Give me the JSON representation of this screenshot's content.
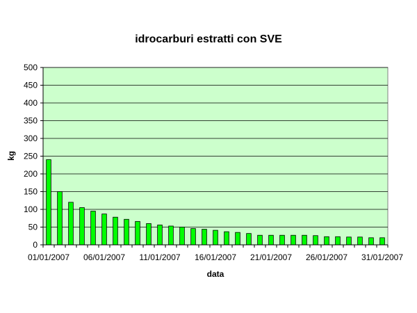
{
  "chart_data": {
    "type": "bar",
    "title": "idrocarburi estratti con SVE",
    "xlabel": "data",
    "ylabel": "kg",
    "ylim": [
      0,
      500
    ],
    "yticks": [
      0,
      50,
      100,
      150,
      200,
      250,
      300,
      350,
      400,
      450,
      500
    ],
    "xtick_labels": [
      "01/01/2007",
      "06/01/2007",
      "11/01/2007",
      "16/01/2007",
      "21/01/2007",
      "26/01/2007",
      "31/01/2007"
    ],
    "categories": [
      "01/01/2007",
      "02/01/2007",
      "03/01/2007",
      "04/01/2007",
      "05/01/2007",
      "06/01/2007",
      "07/01/2007",
      "08/01/2007",
      "09/01/2007",
      "10/01/2007",
      "11/01/2007",
      "12/01/2007",
      "13/01/2007",
      "14/01/2007",
      "15/01/2007",
      "16/01/2007",
      "17/01/2007",
      "18/01/2007",
      "19/01/2007",
      "20/01/2007",
      "21/01/2007",
      "22/01/2007",
      "23/01/2007",
      "24/01/2007",
      "25/01/2007",
      "26/01/2007",
      "27/01/2007",
      "28/01/2007",
      "29/01/2007",
      "30/01/2007",
      "31/01/2007"
    ],
    "values": [
      240,
      150,
      120,
      105,
      95,
      87,
      78,
      72,
      66,
      60,
      56,
      53,
      50,
      46,
      44,
      41,
      37,
      35,
      32,
      27,
      27,
      27,
      27,
      27,
      26,
      23,
      23,
      22,
      22,
      20,
      20
    ],
    "grid": true,
    "plot_background": "#ccffcc",
    "bar_color": "#00ff00",
    "legend": "none"
  }
}
